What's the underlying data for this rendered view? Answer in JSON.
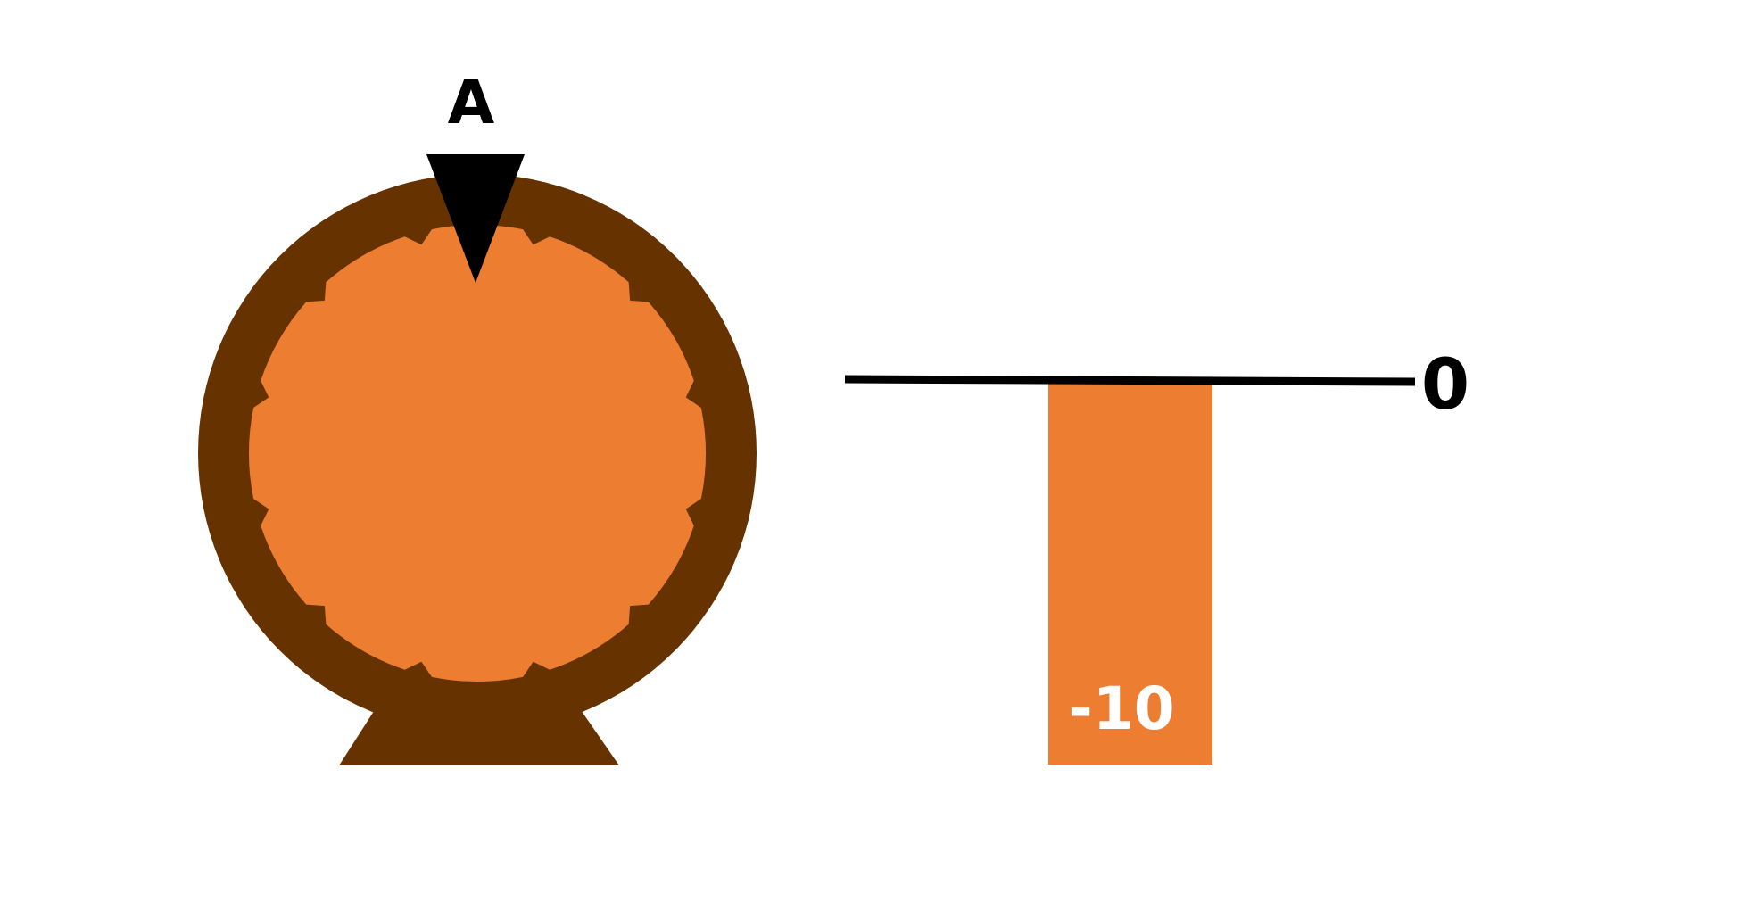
{
  "wheel": {
    "pointer_label": "A",
    "sector_count": 12,
    "colors": {
      "rim": "#663300",
      "face": "#ED7D31",
      "pointer": "#000000",
      "stand": "#663300"
    }
  },
  "bar": {
    "baseline_label": "0",
    "value_label": "-10",
    "value": -10,
    "baseline_value": 0,
    "colors": {
      "bar": "#ED7D31",
      "baseline": "#000000",
      "value_text": "#ffffff"
    }
  }
}
